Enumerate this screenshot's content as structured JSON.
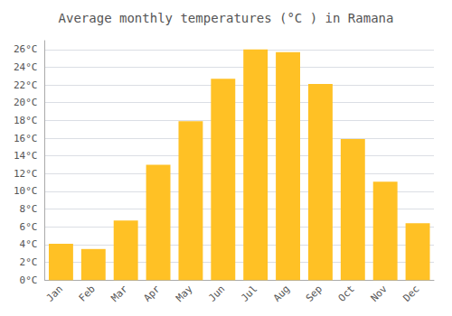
{
  "chart_data": {
    "type": "bar",
    "title": "Average monthly temperatures (°C ) in Ramana",
    "categories": [
      "Jan",
      "Feb",
      "Mar",
      "Apr",
      "May",
      "Jun",
      "Jul",
      "Aug",
      "Sep",
      "Oct",
      "Nov",
      "Dec"
    ],
    "values": [
      4.1,
      3.5,
      6.7,
      13.0,
      17.9,
      22.7,
      26.0,
      25.7,
      22.1,
      15.9,
      11.1,
      6.4
    ],
    "color": "#FFC125",
    "ylim": [
      0,
      27
    ],
    "yticks": [
      {
        "value": 0,
        "label": "0°C"
      },
      {
        "value": 2,
        "label": "2°C"
      },
      {
        "value": 4,
        "label": "4°C"
      },
      {
        "value": 6,
        "label": "6°C"
      },
      {
        "value": 8,
        "label": "8°C"
      },
      {
        "value": 10,
        "label": "10°C"
      },
      {
        "value": 12,
        "label": "12°C"
      },
      {
        "value": 14,
        "label": "14°C"
      },
      {
        "value": 16,
        "label": "16°C"
      },
      {
        "value": 18,
        "label": "18°C"
      },
      {
        "value": 20,
        "label": "20°C"
      },
      {
        "value": 22,
        "label": "22°C"
      },
      {
        "value": 24,
        "label": "24°C"
      },
      {
        "value": 26,
        "label": "26°C"
      }
    ],
    "grid": true
  }
}
